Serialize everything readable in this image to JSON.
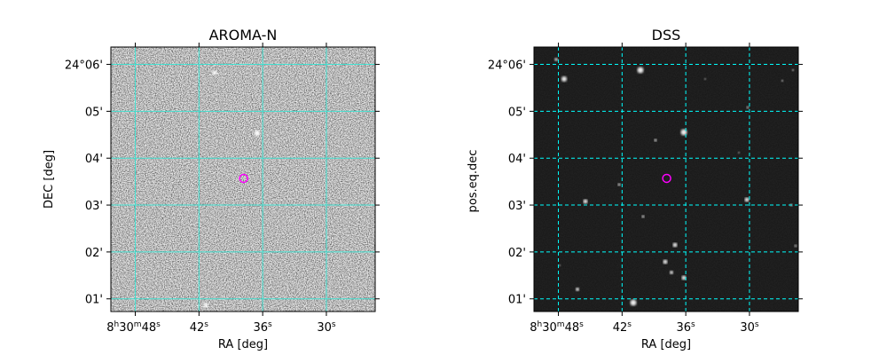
{
  "chart_data": [
    {
      "type": "image",
      "title": "AROMA-N",
      "xlabel": "RA [deg]",
      "ylabel": "DEC [deg]",
      "grid": {
        "on": true,
        "color": "#40e0d0",
        "style": "solid"
      },
      "x_ticks": [
        {
          "h": "8",
          "hsup": "h",
          "m": "30",
          "msup": "m",
          "s": "48",
          "ssup": "s",
          "value_s": 48
        },
        {
          "s": "42",
          "ssup": "s",
          "value_s": 42
        },
        {
          "s": "36",
          "ssup": "s",
          "value_s": 36
        },
        {
          "s": "30",
          "ssup": "s",
          "value_s": 30
        }
      ],
      "x_range_s": [
        50.3,
        25.4
      ],
      "y_ticks": [
        {
          "label": "24°06'",
          "value_arcmin": 6
        },
        {
          "label": "05'",
          "value_arcmin": 5
        },
        {
          "label": "04'",
          "value_arcmin": 4
        },
        {
          "label": "03'",
          "value_arcmin": 3
        },
        {
          "label": "02'",
          "value_arcmin": 2
        },
        {
          "label": "01'",
          "value_arcmin": 1
        }
      ],
      "y_range_arcmin": [
        0.73,
        6.37
      ],
      "marker": {
        "ra_s": 37.8,
        "dec_arcmin": 3.57,
        "color": "#ff00ff",
        "shape": "circle"
      }
    },
    {
      "type": "image",
      "title": "DSS",
      "xlabel": "RA [deg]",
      "ylabel": "pos.eq.dec",
      "grid": {
        "on": true,
        "color": "#00ffff",
        "style": "dashed"
      },
      "x_ticks": [
        {
          "h": "8",
          "hsup": "h",
          "m": "30",
          "msup": "m",
          "s": "48",
          "ssup": "s",
          "value_s": 48
        },
        {
          "s": "42",
          "ssup": "s",
          "value_s": 42
        },
        {
          "s": "36",
          "ssup": "s",
          "value_s": 36
        },
        {
          "s": "30",
          "ssup": "s",
          "value_s": 30
        }
      ],
      "x_range_s": [
        50.3,
        25.4
      ],
      "y_ticks": [
        {
          "label": "24°06'",
          "value_arcmin": 6
        },
        {
          "label": "05'",
          "value_arcmin": 5
        },
        {
          "label": "04'",
          "value_arcmin": 4
        },
        {
          "label": "03'",
          "value_arcmin": 3
        },
        {
          "label": "02'",
          "value_arcmin": 2
        },
        {
          "label": "01'",
          "value_arcmin": 1
        }
      ],
      "y_range_arcmin": [
        0.73,
        6.37
      ],
      "marker": {
        "ra_s": 37.8,
        "dec_arcmin": 3.57,
        "color": "#ff00ff",
        "shape": "circle"
      }
    }
  ]
}
